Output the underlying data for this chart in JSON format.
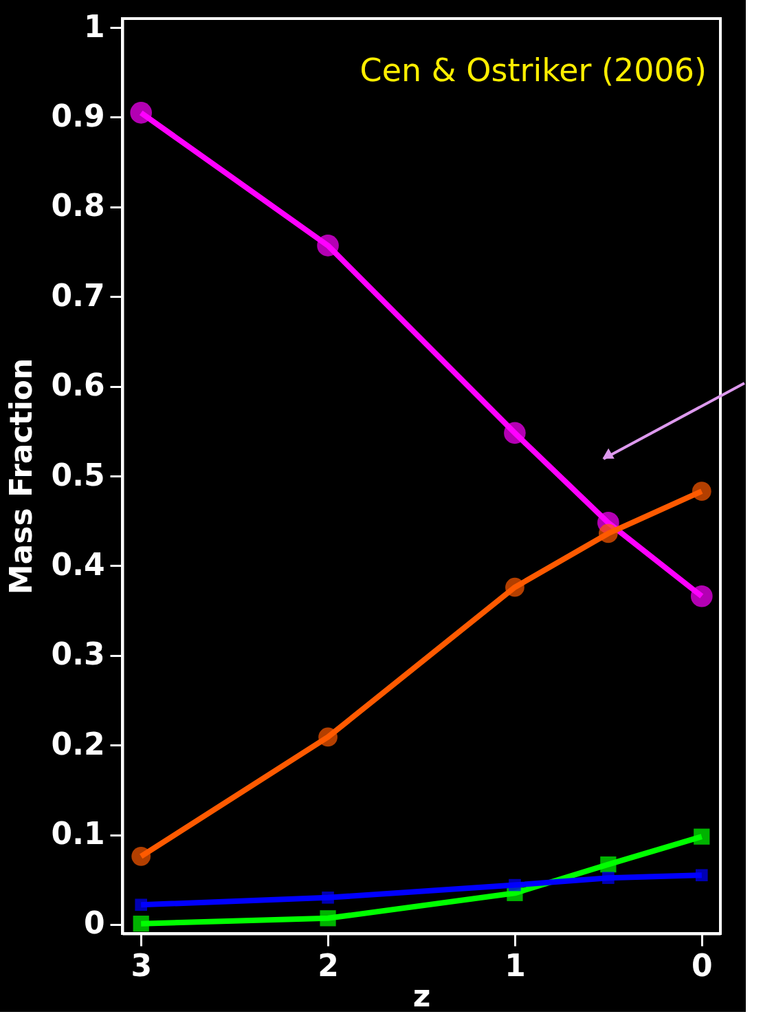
{
  "chart_data": {
    "type": "line",
    "xlabel": "z",
    "ylabel": "Mass Fraction",
    "annotations": [
      "Cen & Ostriker (2006)"
    ],
    "x": [
      3,
      2,
      1,
      0.5,
      0
    ],
    "xlim": [
      3.1,
      -0.1
    ],
    "xticks": [
      3,
      2,
      1,
      0
    ],
    "ylim": [
      -0.01,
      1.01
    ],
    "yticks": [
      0,
      0.1,
      0.2,
      0.3,
      0.4,
      0.5,
      0.6,
      0.7,
      0.8,
      0.9,
      1
    ],
    "grid": false,
    "series": [
      {
        "color": "#ff00ff",
        "marker": "circle",
        "values": [
          0.905,
          0.757,
          0.548,
          0.448,
          0.366
        ]
      },
      {
        "color": "#ff5a00",
        "marker": "circle",
        "values": [
          0.076,
          0.209,
          0.376,
          0.436,
          0.483
        ]
      },
      {
        "color": "#00ff00",
        "marker": "square",
        "values": [
          0.001,
          0.007,
          0.035,
          0.067,
          0.098
        ]
      },
      {
        "color": "#0000ff",
        "marker": "square",
        "values": [
          0.022,
          0.03,
          0.044,
          0.052,
          0.055
        ]
      }
    ]
  }
}
